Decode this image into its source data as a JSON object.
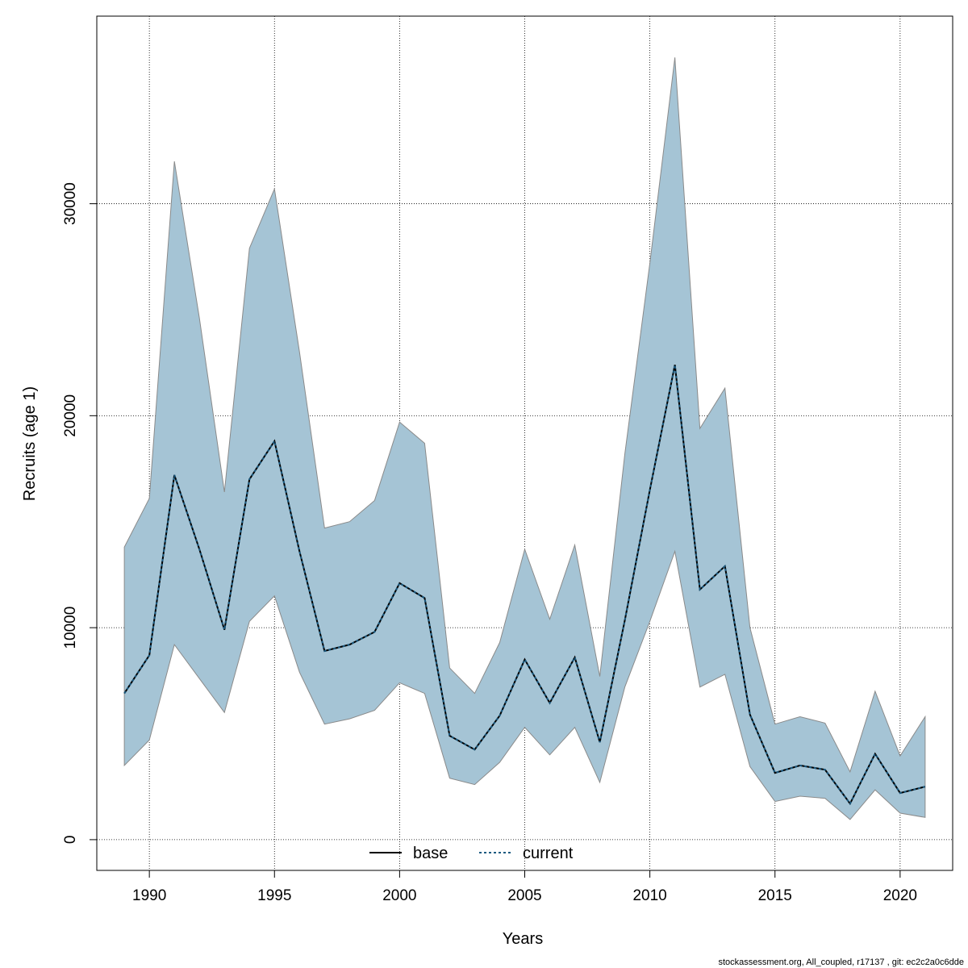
{
  "chart_data": {
    "type": "line",
    "xlabel": "Years",
    "ylabel": "Recruits (age 1)",
    "xlim": [
      1987.9,
      2022.1
    ],
    "ylim": [
      -1450,
      38850
    ],
    "x_ticks": [
      1990,
      1995,
      2000,
      2005,
      2010,
      2015,
      2020
    ],
    "y_ticks": [
      0,
      10000,
      20000,
      30000
    ],
    "grid": true,
    "legend": {
      "placement": "bottom-center",
      "entries": [
        {
          "name": "base",
          "style": "solid",
          "color": "#000000"
        },
        {
          "name": "current",
          "style": "dotted",
          "color": "#1a5a80"
        }
      ]
    },
    "x": [
      1989,
      1990,
      1991,
      1992,
      1993,
      1994,
      1995,
      1996,
      1997,
      1998,
      1999,
      2000,
      2001,
      2002,
      2003,
      2004,
      2005,
      2006,
      2007,
      2008,
      2009,
      2010,
      2011,
      2012,
      2013,
      2014,
      2015,
      2016,
      2017,
      2018,
      2019,
      2020,
      2021
    ],
    "series": [
      {
        "name": "base",
        "values": [
          6900,
          8700,
          17200,
          13700,
          9900,
          17000,
          18800,
          13600,
          8900,
          9200,
          9800,
          12100,
          11400,
          4900,
          4250,
          5850,
          8500,
          6450,
          8600,
          4600,
          10350,
          16500,
          22400,
          11800,
          12900,
          5900,
          3150,
          3500,
          3300,
          1700,
          4050,
          2200,
          2500
        ]
      },
      {
        "name": "current",
        "values": [
          6900,
          8700,
          17200,
          13700,
          9900,
          17000,
          18800,
          13600,
          8900,
          9200,
          9800,
          12100,
          11400,
          4900,
          4250,
          5850,
          8500,
          6450,
          8600,
          4600,
          10350,
          16500,
          22400,
          11800,
          12900,
          5900,
          3150,
          3500,
          3300,
          1700,
          4050,
          2200,
          2500
        ],
        "upper": [
          13800,
          16100,
          32000,
          24600,
          16400,
          27900,
          30700,
          23000,
          14700,
          15000,
          16000,
          19700,
          18700,
          8100,
          6900,
          9300,
          13700,
          10400,
          13900,
          7700,
          18200,
          27200,
          36900,
          19400,
          21300,
          10000,
          5450,
          5800,
          5500,
          3200,
          7000,
          3950,
          5800
        ],
        "lower": [
          3500,
          4700,
          9200,
          7600,
          6000,
          10300,
          11500,
          7900,
          5450,
          5700,
          6100,
          7400,
          6900,
          2900,
          2600,
          3650,
          5300,
          4000,
          5300,
          2700,
          7200,
          10300,
          13600,
          7200,
          7800,
          3450,
          1800,
          2050,
          1950,
          950,
          2350,
          1250,
          1050
        ]
      }
    ],
    "colors": {
      "band": "#a5c4d5",
      "band_edge": "#8a8a8a",
      "current_line": "#1a5a80",
      "base_line": "#000000"
    },
    "footnote": "stockassessment.org, All_coupled, r17137 , git: ec2c2a0c6dde"
  }
}
